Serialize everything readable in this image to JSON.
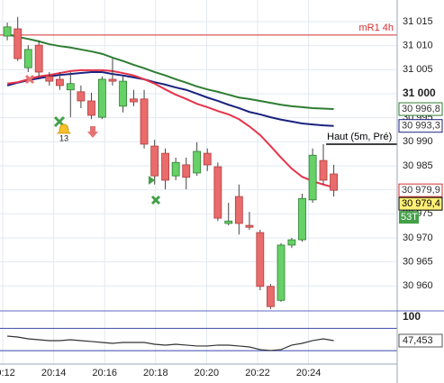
{
  "chart_data": {
    "type": "candlestick",
    "xlim": [
      11.894,
      27.477
    ],
    "xticks": [
      {
        "value": 12,
        "label": "20:12"
      },
      {
        "value": 14,
        "label": "20:14"
      },
      {
        "value": 16,
        "label": "20:16"
      },
      {
        "value": 18,
        "label": "20:18"
      },
      {
        "value": 20,
        "label": "20:20"
      },
      {
        "value": 22,
        "label": "20:22"
      },
      {
        "value": 24,
        "label": "20:24"
      }
    ],
    "ylim": [
      30954.8,
      31019.5
    ],
    "yticks": [
      {
        "value": 30960,
        "label": "30 960"
      },
      {
        "value": 30965,
        "label": "30 965"
      },
      {
        "value": 30970,
        "label": "30 970"
      },
      {
        "value": 30975,
        "label": "30 975"
      },
      {
        "value": 30980,
        "label": "30 980"
      },
      {
        "value": 30985,
        "label": "30 985"
      },
      {
        "value": 30990,
        "label": "30 990"
      },
      {
        "value": 30995,
        "label": "30 995"
      },
      {
        "value": 31000,
        "label": "31 000",
        "bold": true
      },
      {
        "value": 31005,
        "label": "31 005"
      },
      {
        "value": 31010,
        "label": "31 010"
      },
      {
        "value": 31015,
        "label": "31 015"
      }
    ],
    "grid": true,
    "up_color": "#66d166",
    "down_color": "#e96b6b",
    "x": [
      12.18,
      12.59,
      13.0,
      13.42,
      13.83,
      14.24,
      14.66,
      15.07,
      15.48,
      15.9,
      16.31,
      16.72,
      17.14,
      17.55,
      17.96,
      18.38,
      18.79,
      19.2,
      19.62,
      20.03,
      20.44,
      20.86,
      21.27,
      21.68,
      22.1,
      22.51,
      22.92,
      23.34,
      23.75,
      24.16,
      24.58,
      24.99
    ],
    "open": [
      31012.0,
      31013.5,
      31005.4,
      31010.1,
      31003.6,
      31003.0,
      31000.8,
      31000.4,
      30998.5,
      30995.1,
      31003.0,
      30997.4,
      30998.9,
      30998.9,
      30989.1,
      30987.6,
      30982.9,
      30985.2,
      30983.5,
      30987.6,
      30984.8,
      30973.0,
      30978.6,
      30972.6,
      30971.1,
      30959.9,
      30957.0,
      30968.5,
      30969.6,
      30977.9,
      30986.1,
      30983.3
    ],
    "high": [
      31014.8,
      31016.0,
      31010.1,
      31011.1,
      31004.5,
      31004.5,
      31004.5,
      31001.7,
      31000.2,
      31003.6,
      31007.3,
      31003.6,
      31000.8,
      31000.8,
      30990.4,
      30988.6,
      30986.7,
      30986.7,
      30989.9,
      30988.6,
      30985.7,
      30977.3,
      30981.1,
      30975.4,
      30971.7,
      30960.4,
      30968.9,
      30970.0,
      30979.2,
      30988.6,
      30989.5,
      30985.2
    ],
    "low": [
      31011.1,
      31006.8,
      31004.5,
      31003.6,
      31001.7,
      31000.8,
      30995.1,
      30997.0,
      30994.7,
      30994.7,
      31001.7,
      30996.1,
      30997.4,
      30988.6,
      30981.1,
      30980.1,
      30982.0,
      30980.1,
      30982.9,
      30983.9,
      30973.5,
      30972.6,
      30970.7,
      30971.7,
      30959.1,
      30955.2,
      30956.7,
      30967.9,
      30969.2,
      30977.3,
      30981.1,
      30978.6
    ],
    "close": [
      31013.9,
      31007.3,
      31009.2,
      31004.5,
      31002.6,
      31001.7,
      31002.1,
      30998.5,
      30995.5,
      31003.0,
      31002.6,
      31002.6,
      30998.3,
      30989.5,
      30982.9,
      30982.0,
      30985.7,
      30982.6,
      30988.0,
      30985.2,
      30974.1,
      30973.5,
      30973.0,
      30972.2,
      30959.9,
      30955.7,
      30968.5,
      30969.6,
      30978.2,
      30987.2,
      30982.0,
      30979.9
    ],
    "series": [
      {
        "color": "#2e7d32",
        "values": [
          31012.4,
          31011.8,
          31011.4,
          31010.9,
          31010.3,
          31009.9,
          31009.6,
          31009.2,
          31008.8,
          31008.3,
          31007.5,
          31006.8,
          31006.0,
          31005.3,
          31004.5,
          31003.8,
          31003.0,
          31002.3,
          31001.5,
          31000.9,
          31000.4,
          30999.8,
          30999.2,
          30998.9,
          30998.5,
          30998.1,
          30997.7,
          30997.4,
          30997.2,
          30997.0,
          30996.9,
          30996.8
        ]
      },
      {
        "color": "#1a237e",
        "values": [
          31001.7,
          31002.3,
          31002.8,
          31003.2,
          31003.6,
          31003.9,
          31004.1,
          31004.3,
          31004.5,
          31004.5,
          31004.1,
          31003.8,
          31003.4,
          31003.0,
          31002.4,
          31001.9,
          31001.3,
          31000.8,
          31000.0,
          30999.2,
          30998.5,
          30997.7,
          30997.0,
          30996.2,
          30995.7,
          30995.1,
          30994.6,
          30994.2,
          30993.8,
          30993.6,
          30993.4,
          30993.3
        ]
      },
      {
        "color": "#e8334a",
        "values": [
          31002.1,
          31002.4,
          31003.0,
          31003.6,
          31003.9,
          31004.3,
          31004.7,
          31004.9,
          31004.9,
          31004.9,
          31004.7,
          31004.3,
          31003.8,
          31003.0,
          31002.1,
          31000.9,
          30999.8,
          30998.9,
          30997.9,
          30997.2,
          30996.4,
          30995.7,
          30994.7,
          30993.2,
          30991.4,
          30989.1,
          30986.7,
          30984.4,
          30982.7,
          30981.8,
          30981.1,
          30980.5
        ]
      }
    ],
    "levels": [
      {
        "label": "mR1 4h",
        "value": 31012.2,
        "color": "#d32f2f"
      },
      {
        "label": "Haut (5m, Pré)",
        "value": 30989.5,
        "color": "#000000",
        "x_start": 24.69
      }
    ],
    "badges": [
      {
        "value": 30996.8,
        "label": "30 996,8",
        "color": "#2e7d32",
        "fill": "#ffffff"
      },
      {
        "value": 30993.3,
        "label": "30 993,3",
        "color": "#1a237e",
        "fill": "#ffffff"
      },
      {
        "value": 30979.9,
        "label": "30 979,9",
        "color": "#d32f2f",
        "fill": "#ffffff"
      },
      {
        "value": 30979.4,
        "label": "30 979,4",
        "color": "#000000",
        "fill": "#fff176"
      }
    ],
    "tag": {
      "label": "53T",
      "fill": "#43a047",
      "color": "#ffffff"
    },
    "signal_label": "13",
    "oscillator": {
      "ylim": [
        -5.1,
        114.1
      ],
      "yticks": [
        100
      ],
      "bands": [
        75,
        25
      ],
      "color": "#333333",
      "values": [
        57.6,
        55.5,
        51.5,
        49.5,
        47.5,
        47.5,
        49.5,
        47.5,
        45.5,
        43.4,
        41.4,
        43.4,
        43.4,
        43.4,
        39.4,
        37.4,
        39.4,
        37.4,
        35.4,
        35.4,
        37.4,
        37.4,
        35.4,
        33.3,
        27.3,
        25.3,
        27.3,
        37.4,
        41.4,
        47.5,
        51.5,
        47.453
      ],
      "value_label": "47,453"
    }
  }
}
